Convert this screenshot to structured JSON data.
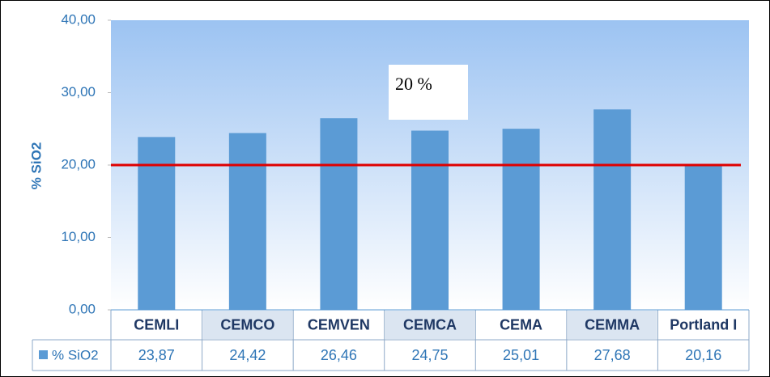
{
  "chart_data": {
    "type": "bar",
    "y_label": "% SiO2",
    "categories": [
      "CEMLI",
      "CEMCO",
      "CEMVEN",
      "CEMCA",
      "CEMA",
      "CEMMA",
      "Portland I"
    ],
    "series": [
      {
        "name": "% SiO2",
        "color": "#5b9bd5",
        "values": [
          23.87,
          24.42,
          26.46,
          24.75,
          25.01,
          27.68,
          20.16
        ],
        "value_labels": [
          "23,87",
          "24,42",
          "26,46",
          "24,75",
          "25,01",
          "27,68",
          "20,16"
        ]
      }
    ],
    "ylim": [
      0,
      40
    ],
    "yticks": [
      {
        "value": 0,
        "label": "0,00"
      },
      {
        "value": 10,
        "label": "10,00"
      },
      {
        "value": 20,
        "label": "20,00"
      },
      {
        "value": 30,
        "label": "30,00"
      },
      {
        "value": 40,
        "label": "40,00"
      }
    ],
    "reference_line": {
      "value": 20,
      "label": "20 %",
      "color": "#e00000"
    },
    "data_table": true
  }
}
